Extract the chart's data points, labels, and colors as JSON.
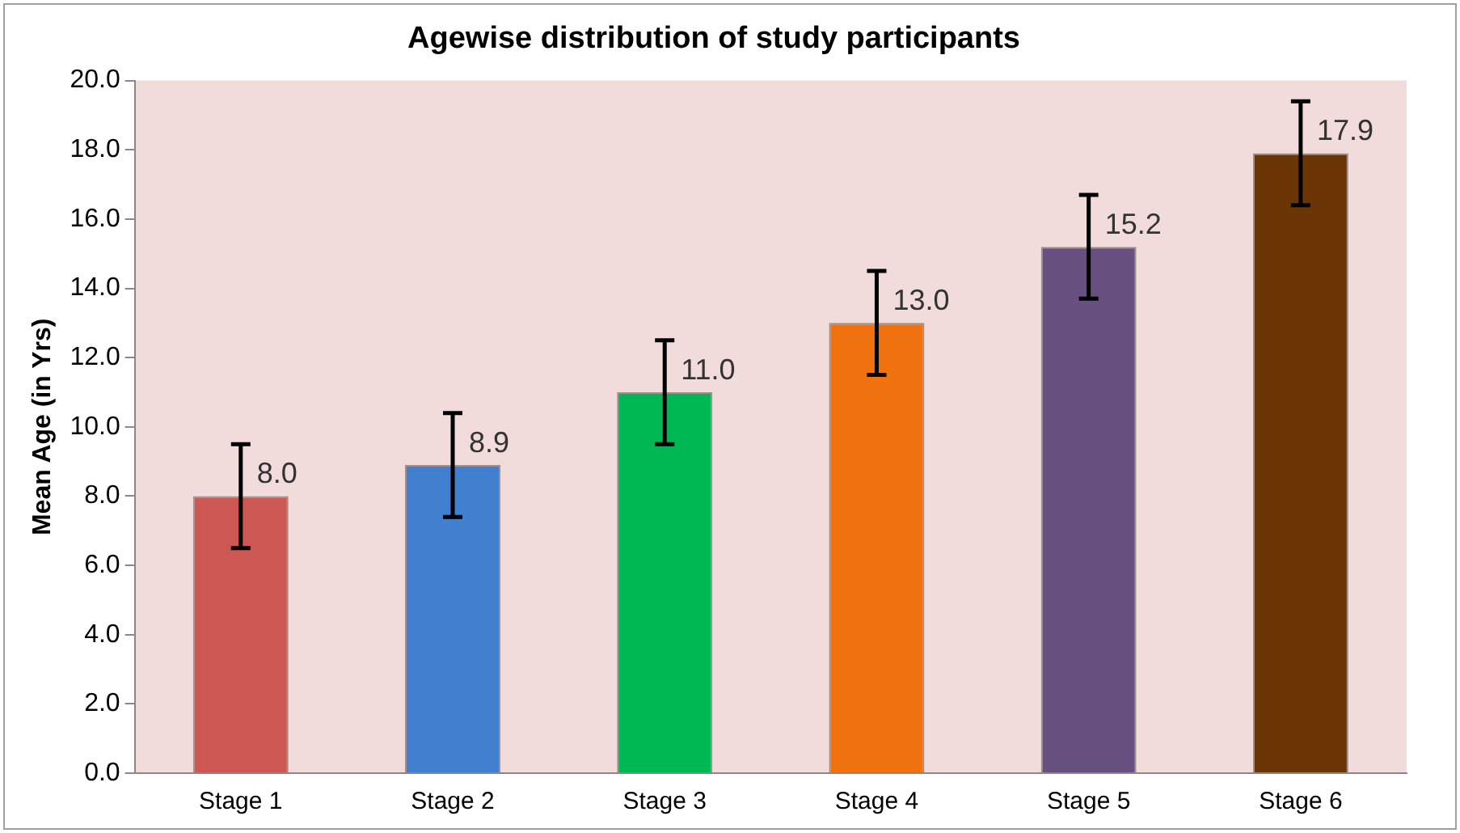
{
  "chart_data": {
    "type": "bar",
    "title": "Agewise distribution of study participants",
    "ylabel": "Mean Age (in Yrs)",
    "categories": [
      "Stage 1",
      "Stage 2",
      "Stage 3",
      "Stage 4",
      "Stage 5",
      "Stage 6"
    ],
    "values": [
      8.0,
      8.9,
      11.0,
      13.0,
      15.2,
      17.9
    ],
    "value_labels": [
      "8.0",
      "8.9",
      "11.0",
      "13.0",
      "15.2",
      "17.9"
    ],
    "errors": [
      1.5,
      1.5,
      1.5,
      1.5,
      1.5,
      1.5
    ],
    "colors": [
      "#cd5752",
      "#4080cf",
      "#00b853",
      "#f0730f",
      "#67507f",
      "#6b3506"
    ],
    "ylim": [
      0,
      20
    ],
    "yticks": [
      {
        "value": 0,
        "label": "0.0"
      },
      {
        "value": 2,
        "label": "2.0"
      },
      {
        "value": 4,
        "label": "4.0"
      },
      {
        "value": 6,
        "label": "6.0"
      },
      {
        "value": 8,
        "label": "8.0"
      },
      {
        "value": 10,
        "label": "10.0"
      },
      {
        "value": 12,
        "label": "12.0"
      },
      {
        "value": 14,
        "label": "14.0"
      },
      {
        "value": 16,
        "label": "16.0"
      },
      {
        "value": 18,
        "label": "18.0"
      },
      {
        "value": 20,
        "label": "20.0"
      }
    ],
    "grid": false,
    "legend": false
  }
}
